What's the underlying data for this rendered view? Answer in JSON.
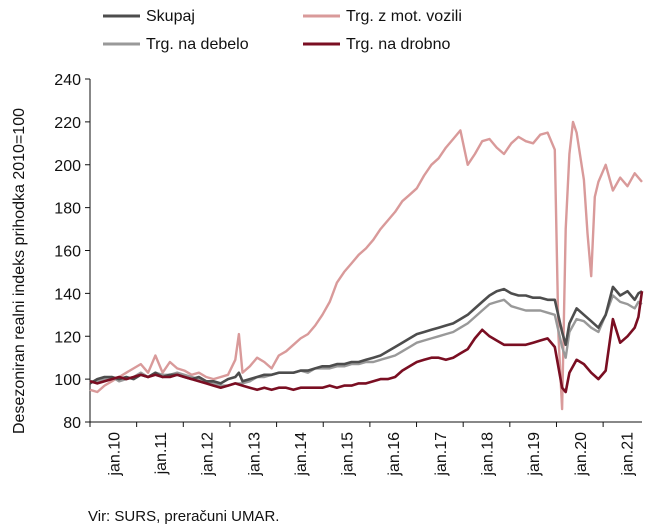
{
  "source": "Vir: SURS, preračuni UMAR.",
  "chart_data": {
    "type": "line",
    "ylabel": "Desezoniran realni indeks prihodka 2010=100",
    "xlabel": "",
    "ylim": [
      80,
      240
    ],
    "yticks": [
      80,
      100,
      120,
      140,
      160,
      180,
      200,
      220,
      240
    ],
    "x_start": "2010-01",
    "x_end": "2021-10",
    "xtick_labels": [
      "jan.10",
      "jan.11",
      "jan.12",
      "jan.13",
      "jan.14",
      "jan.15",
      "jan.16",
      "jan.17",
      "jan.18",
      "jan.19",
      "jan.20",
      "jan.21"
    ],
    "grid": false,
    "legend_position": "top",
    "series": [
      {
        "name": "Skupaj",
        "color": "#4d4d4d",
        "values": [
          [
            0,
            98
          ],
          [
            2,
            100
          ],
          [
            4,
            101
          ],
          [
            6,
            101
          ],
          [
            8,
            100
          ],
          [
            10,
            101
          ],
          [
            12,
            100
          ],
          [
            14,
            102
          ],
          [
            16,
            101
          ],
          [
            18,
            103
          ],
          [
            20,
            101
          ],
          [
            22,
            102
          ],
          [
            24,
            102
          ],
          [
            26,
            101
          ],
          [
            28,
            100
          ],
          [
            30,
            101
          ],
          [
            32,
            99
          ],
          [
            34,
            99
          ],
          [
            36,
            98
          ],
          [
            38,
            100
          ],
          [
            40,
            101
          ],
          [
            41,
            103
          ],
          [
            42,
            99
          ],
          [
            44,
            100
          ],
          [
            46,
            101
          ],
          [
            48,
            102
          ],
          [
            50,
            102
          ],
          [
            52,
            103
          ],
          [
            54,
            103
          ],
          [
            56,
            103
          ],
          [
            58,
            104
          ],
          [
            60,
            104
          ],
          [
            62,
            105
          ],
          [
            64,
            106
          ],
          [
            66,
            106
          ],
          [
            68,
            107
          ],
          [
            70,
            107
          ],
          [
            72,
            108
          ],
          [
            74,
            108
          ],
          [
            76,
            109
          ],
          [
            78,
            110
          ],
          [
            80,
            111
          ],
          [
            82,
            113
          ],
          [
            84,
            115
          ],
          [
            86,
            117
          ],
          [
            88,
            119
          ],
          [
            90,
            121
          ],
          [
            92,
            122
          ],
          [
            94,
            123
          ],
          [
            96,
            124
          ],
          [
            98,
            125
          ],
          [
            100,
            126
          ],
          [
            102,
            128
          ],
          [
            104,
            130
          ],
          [
            106,
            133
          ],
          [
            108,
            136
          ],
          [
            110,
            139
          ],
          [
            112,
            141
          ],
          [
            114,
            142
          ],
          [
            116,
            140
          ],
          [
            118,
            139
          ],
          [
            120,
            139
          ],
          [
            122,
            138
          ],
          [
            124,
            138
          ],
          [
            126,
            137
          ],
          [
            128,
            137
          ],
          [
            130,
            122
          ],
          [
            131,
            116
          ],
          [
            132,
            126
          ],
          [
            134,
            133
          ],
          [
            136,
            130
          ],
          [
            138,
            127
          ],
          [
            140,
            124
          ],
          [
            142,
            130
          ],
          [
            144,
            143
          ],
          [
            146,
            139
          ],
          [
            148,
            141
          ],
          [
            150,
            137
          ],
          [
            151,
            140
          ],
          [
            152,
            141
          ]
        ]
      },
      {
        "name": "Trg. z mot. vozili",
        "color": "#d99a9a",
        "values": [
          [
            0,
            95
          ],
          [
            2,
            94
          ],
          [
            4,
            97
          ],
          [
            6,
            99
          ],
          [
            8,
            101
          ],
          [
            10,
            103
          ],
          [
            12,
            105
          ],
          [
            14,
            107
          ],
          [
            16,
            103
          ],
          [
            18,
            111
          ],
          [
            20,
            103
          ],
          [
            22,
            108
          ],
          [
            24,
            105
          ],
          [
            26,
            104
          ],
          [
            28,
            102
          ],
          [
            30,
            103
          ],
          [
            32,
            101
          ],
          [
            34,
            100
          ],
          [
            36,
            101
          ],
          [
            38,
            102
          ],
          [
            40,
            109
          ],
          [
            41,
            121
          ],
          [
            42,
            103
          ],
          [
            44,
            106
          ],
          [
            46,
            110
          ],
          [
            48,
            108
          ],
          [
            50,
            105
          ],
          [
            52,
            111
          ],
          [
            54,
            113
          ],
          [
            56,
            116
          ],
          [
            58,
            119
          ],
          [
            60,
            121
          ],
          [
            62,
            125
          ],
          [
            64,
            130
          ],
          [
            66,
            136
          ],
          [
            68,
            145
          ],
          [
            70,
            150
          ],
          [
            72,
            154
          ],
          [
            74,
            158
          ],
          [
            76,
            161
          ],
          [
            78,
            165
          ],
          [
            80,
            170
          ],
          [
            82,
            174
          ],
          [
            84,
            178
          ],
          [
            86,
            183
          ],
          [
            88,
            186
          ],
          [
            90,
            189
          ],
          [
            92,
            195
          ],
          [
            94,
            200
          ],
          [
            96,
            203
          ],
          [
            98,
            208
          ],
          [
            100,
            212
          ],
          [
            102,
            216
          ],
          [
            104,
            200
          ],
          [
            106,
            205
          ],
          [
            108,
            211
          ],
          [
            110,
            212
          ],
          [
            112,
            208
          ],
          [
            114,
            205
          ],
          [
            116,
            210
          ],
          [
            118,
            213
          ],
          [
            120,
            211
          ],
          [
            122,
            210
          ],
          [
            124,
            214
          ],
          [
            126,
            215
          ],
          [
            128,
            207
          ],
          [
            129,
            120
          ],
          [
            130,
            86
          ],
          [
            131,
            170
          ],
          [
            132,
            205
          ],
          [
            133,
            220
          ],
          [
            134,
            215
          ],
          [
            136,
            193
          ],
          [
            137,
            168
          ],
          [
            138,
            148
          ],
          [
            139,
            185
          ],
          [
            140,
            192
          ],
          [
            142,
            200
          ],
          [
            144,
            188
          ],
          [
            146,
            194
          ],
          [
            148,
            190
          ],
          [
            150,
            196
          ],
          [
            152,
            192
          ]
        ]
      },
      {
        "name": "Trg. na debelo",
        "color": "#999999",
        "values": [
          [
            0,
            99
          ],
          [
            2,
            99
          ],
          [
            4,
            100
          ],
          [
            6,
            101
          ],
          [
            8,
            99
          ],
          [
            10,
            100
          ],
          [
            12,
            101
          ],
          [
            14,
            103
          ],
          [
            16,
            101
          ],
          [
            18,
            103
          ],
          [
            20,
            102
          ],
          [
            22,
            102
          ],
          [
            24,
            103
          ],
          [
            26,
            102
          ],
          [
            28,
            101
          ],
          [
            30,
            100
          ],
          [
            32,
            99
          ],
          [
            34,
            98
          ],
          [
            36,
            97
          ],
          [
            38,
            97
          ],
          [
            40,
            98
          ],
          [
            42,
            98
          ],
          [
            44,
            99
          ],
          [
            46,
            101
          ],
          [
            48,
            101
          ],
          [
            50,
            102
          ],
          [
            52,
            103
          ],
          [
            54,
            103
          ],
          [
            56,
            103
          ],
          [
            58,
            104
          ],
          [
            60,
            103
          ],
          [
            62,
            105
          ],
          [
            64,
            105
          ],
          [
            66,
            105
          ],
          [
            68,
            106
          ],
          [
            70,
            106
          ],
          [
            72,
            107
          ],
          [
            74,
            107
          ],
          [
            76,
            108
          ],
          [
            78,
            108
          ],
          [
            80,
            109
          ],
          [
            82,
            110
          ],
          [
            84,
            111
          ],
          [
            86,
            113
          ],
          [
            88,
            115
          ],
          [
            90,
            117
          ],
          [
            92,
            118
          ],
          [
            94,
            119
          ],
          [
            96,
            120
          ],
          [
            98,
            121
          ],
          [
            100,
            122
          ],
          [
            102,
            124
          ],
          [
            104,
            126
          ],
          [
            106,
            129
          ],
          [
            108,
            132
          ],
          [
            110,
            135
          ],
          [
            112,
            136
          ],
          [
            114,
            137
          ],
          [
            116,
            134
          ],
          [
            118,
            133
          ],
          [
            120,
            132
          ],
          [
            122,
            132
          ],
          [
            124,
            132
          ],
          [
            126,
            131
          ],
          [
            128,
            130
          ],
          [
            130,
            115
          ],
          [
            131,
            110
          ],
          [
            132,
            122
          ],
          [
            134,
            128
          ],
          [
            136,
            127
          ],
          [
            138,
            124
          ],
          [
            140,
            122
          ],
          [
            142,
            130
          ],
          [
            144,
            139
          ],
          [
            146,
            136
          ],
          [
            148,
            135
          ],
          [
            150,
            133
          ],
          [
            151,
            136
          ],
          [
            152,
            135
          ]
        ]
      },
      {
        "name": "Trg. na drobno",
        "color": "#7a0e22",
        "values": [
          [
            0,
            99
          ],
          [
            2,
            98
          ],
          [
            4,
            99
          ],
          [
            6,
            100
          ],
          [
            8,
            101
          ],
          [
            10,
            100
          ],
          [
            12,
            101
          ],
          [
            14,
            102
          ],
          [
            16,
            101
          ],
          [
            18,
            102
          ],
          [
            20,
            101
          ],
          [
            22,
            101
          ],
          [
            24,
            102
          ],
          [
            26,
            101
          ],
          [
            28,
            100
          ],
          [
            30,
            99
          ],
          [
            32,
            98
          ],
          [
            34,
            97
          ],
          [
            36,
            96
          ],
          [
            38,
            97
          ],
          [
            40,
            98
          ],
          [
            42,
            97
          ],
          [
            44,
            96
          ],
          [
            46,
            95
          ],
          [
            48,
            96
          ],
          [
            50,
            95
          ],
          [
            52,
            96
          ],
          [
            54,
            96
          ],
          [
            56,
            95
          ],
          [
            58,
            96
          ],
          [
            60,
            96
          ],
          [
            62,
            96
          ],
          [
            64,
            96
          ],
          [
            66,
            97
          ],
          [
            68,
            96
          ],
          [
            70,
            97
          ],
          [
            72,
            97
          ],
          [
            74,
            98
          ],
          [
            76,
            98
          ],
          [
            78,
            99
          ],
          [
            80,
            100
          ],
          [
            82,
            100
          ],
          [
            84,
            101
          ],
          [
            86,
            104
          ],
          [
            88,
            106
          ],
          [
            90,
            108
          ],
          [
            92,
            109
          ],
          [
            94,
            110
          ],
          [
            96,
            110
          ],
          [
            98,
            109
          ],
          [
            100,
            110
          ],
          [
            102,
            112
          ],
          [
            104,
            114
          ],
          [
            106,
            119
          ],
          [
            108,
            123
          ],
          [
            110,
            120
          ],
          [
            112,
            118
          ],
          [
            114,
            116
          ],
          [
            116,
            116
          ],
          [
            118,
            116
          ],
          [
            120,
            116
          ],
          [
            122,
            117
          ],
          [
            124,
            118
          ],
          [
            126,
            119
          ],
          [
            128,
            115
          ],
          [
            130,
            96
          ],
          [
            131,
            94
          ],
          [
            132,
            103
          ],
          [
            134,
            109
          ],
          [
            136,
            107
          ],
          [
            138,
            103
          ],
          [
            140,
            100
          ],
          [
            142,
            104
          ],
          [
            144,
            128
          ],
          [
            146,
            117
          ],
          [
            148,
            120
          ],
          [
            150,
            124
          ],
          [
            151,
            129
          ],
          [
            152,
            141
          ]
        ]
      }
    ]
  },
  "legend": [
    {
      "label": "Skupaj",
      "color": "#4d4d4d"
    },
    {
      "label": "Trg. z mot. vozili",
      "color": "#d99a9a"
    },
    {
      "label": "Trg. na debelo",
      "color": "#999999"
    },
    {
      "label": "Trg. na drobno",
      "color": "#7a0e22"
    }
  ]
}
